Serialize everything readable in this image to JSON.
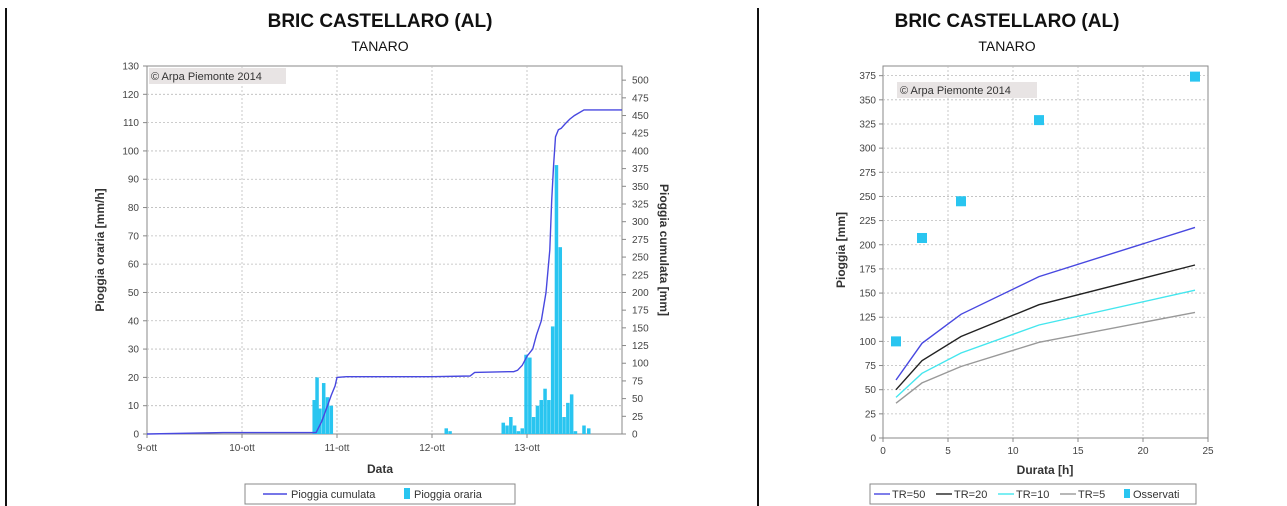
{
  "chart_data": [
    {
      "type": "bar",
      "title": "BRIC CASTELLARO (AL)",
      "subtitle": "TANARO",
      "watermark": "© Arpa Piemonte 2014",
      "xlabel": "Data",
      "ylabel": "Pioggia oraria [mm/h]",
      "y2label": "Pioggia cumulata [mm]",
      "x_ticks": [
        "9-ott",
        "10-ott",
        "11-ott",
        "12-ott",
        "13-ott"
      ],
      "xlim_days": [
        9,
        14
      ],
      "ylim": [
        0,
        130
      ],
      "y_ticks": [
        0,
        10,
        20,
        30,
        40,
        50,
        60,
        70,
        80,
        90,
        100,
        110,
        120,
        130
      ],
      "y2lim": [
        0,
        520
      ],
      "y2_ticks": [
        0,
        25,
        50,
        75,
        100,
        125,
        150,
        175,
        200,
        225,
        250,
        275,
        300,
        325,
        350,
        375,
        400,
        425,
        450,
        475,
        500
      ],
      "grid": true,
      "legend_position": "bottom",
      "series": [
        {
          "name": "Pioggia cumulata",
          "type": "line",
          "axis": "right",
          "color": "#4848e0",
          "x": [
            9.0,
            9.8,
            10.78,
            10.84,
            10.9,
            10.94,
            10.98,
            11.0,
            11.1,
            11.5,
            12.0,
            12.4,
            12.45,
            12.8,
            12.86,
            12.9,
            12.95,
            13.0,
            13.06,
            13.1,
            13.15,
            13.2,
            13.24,
            13.26,
            13.28,
            13.3,
            13.33,
            13.36,
            13.4,
            13.45,
            13.5,
            13.6,
            14.0
          ],
          "y": [
            0,
            2,
            2,
            18,
            40,
            55,
            68,
            80,
            81,
            81,
            81,
            82,
            87,
            88,
            88,
            90,
            97,
            110,
            120,
            140,
            160,
            200,
            260,
            330,
            380,
            420,
            430,
            432,
            438,
            445,
            450,
            458,
            458
          ]
        },
        {
          "name": "Pioggia oraria",
          "type": "bar",
          "axis": "left",
          "color": "#29c5f0",
          "x": [
            10.76,
            10.79,
            10.82,
            10.86,
            10.9,
            10.94,
            12.15,
            12.19,
            12.75,
            12.79,
            12.83,
            12.87,
            12.91,
            12.95,
            12.99,
            13.03,
            13.07,
            13.11,
            13.15,
            13.19,
            13.23,
            13.27,
            13.31,
            13.35,
            13.39,
            13.43,
            13.47,
            13.51,
            13.6,
            13.65
          ],
          "y": [
            12,
            20,
            9,
            18,
            13,
            10,
            2,
            1,
            4,
            3,
            6,
            3,
            1,
            2,
            28,
            27,
            6,
            10,
            12,
            16,
            12,
            38,
            95,
            66,
            6,
            11,
            14,
            1,
            3,
            2
          ]
        }
      ]
    },
    {
      "type": "scatter",
      "title": "BRIC CASTELLARO (AL)",
      "subtitle": "TANARO",
      "watermark": "© Arpa Piemonte 2014",
      "xlabel": "Durata [h]",
      "ylabel": "Pioggia [mm]",
      "xlim": [
        0,
        25
      ],
      "x_ticks": [
        0,
        5,
        10,
        15,
        20,
        25
      ],
      "ylim": [
        0,
        385
      ],
      "y_ticks": [
        0,
        25,
        50,
        75,
        100,
        125,
        150,
        175,
        200,
        225,
        250,
        275,
        300,
        325,
        350,
        375
      ],
      "grid": true,
      "legend_position": "bottom",
      "curve_x": [
        1,
        3,
        6,
        12,
        24
      ],
      "series": [
        {
          "name": "TR=50",
          "type": "line",
          "color": "#4848e0",
          "y": [
            60,
            98,
            128,
            167,
            218
          ]
        },
        {
          "name": "TR=20",
          "type": "line",
          "color": "#222222",
          "y": [
            50,
            80,
            105,
            138,
            179
          ]
        },
        {
          "name": "TR=10",
          "type": "line",
          "color": "#44e6ee",
          "y": [
            42,
            67,
            88,
            117,
            153
          ]
        },
        {
          "name": "TR=5",
          "type": "line",
          "color": "#999999",
          "y": [
            36,
            57,
            74,
            99,
            130
          ]
        },
        {
          "name": "Osservati",
          "type": "scatter",
          "color": "#29c5f0",
          "x": [
            1,
            3,
            6,
            12,
            24
          ],
          "y": [
            100,
            207,
            245,
            329,
            374
          ]
        }
      ]
    }
  ]
}
